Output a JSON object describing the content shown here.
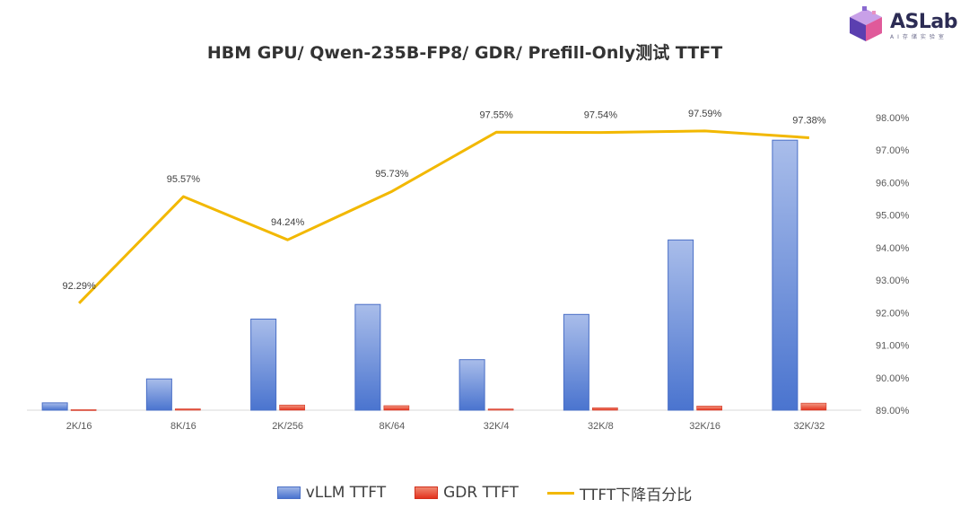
{
  "title": "HBM GPU/ Qwen-235B-FP8/ GDR/ Prefill-Only测试 TTFT",
  "logo": {
    "text": "ASLab",
    "subtext": "AI存储实验室"
  },
  "colors": {
    "vllm": "#4a74cf",
    "gdr": "#e3331f",
    "line": "#f2b800"
  },
  "chart_data": {
    "type": "bar",
    "categories": [
      "2K/16",
      "8K/16",
      "2K/256",
      "8K/64",
      "32K/4",
      "32K/8",
      "32K/16",
      "32K/32"
    ],
    "series": [
      {
        "name": "vLLM TTFT",
        "type": "bar",
        "values": [
          0.55,
          2.35,
          6.85,
          7.95,
          3.8,
          7.2,
          12.8,
          20.3
        ]
      },
      {
        "name": "GDR TTFT",
        "type": "bar",
        "values": [
          0.04,
          0.1,
          0.39,
          0.34,
          0.09,
          0.18,
          0.31,
          0.53
        ]
      },
      {
        "name": "TTFT下降百分比",
        "type": "line",
        "axis": "right",
        "values": [
          92.29,
          95.57,
          94.24,
          95.73,
          97.55,
          97.54,
          97.59,
          97.38
        ]
      }
    ],
    "line_labels": [
      "92.29%",
      "95.57%",
      "94.24%",
      "95.73%",
      "97.55%",
      "97.54%",
      "97.59%",
      "97.38%"
    ],
    "y_left_range": [
      0,
      22
    ],
    "y_right_range": [
      89,
      98
    ],
    "y_right_ticks": [
      "89.00%",
      "90.00%",
      "91.00%",
      "92.00%",
      "93.00%",
      "94.00%",
      "95.00%",
      "96.00%",
      "97.00%",
      "98.00%"
    ],
    "legend_position": "bottom"
  }
}
